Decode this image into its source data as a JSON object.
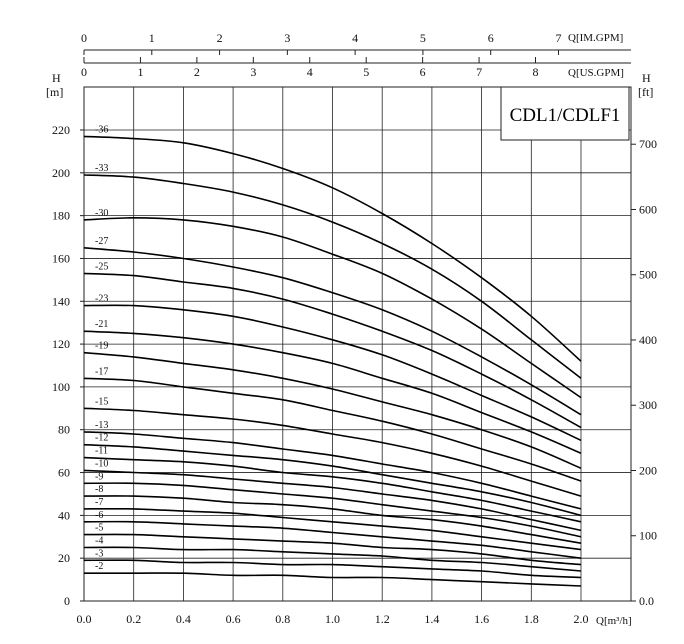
{
  "chart_data": {
    "type": "line",
    "model_label": "CDL1/CDLF1",
    "xlabel": "Q[m³/h]",
    "xlim": [
      0,
      2.0
    ],
    "x_ticks": [
      "0.0",
      "0.2",
      "0.4",
      "0.6",
      "0.8",
      "1.0",
      "1.2",
      "1.4",
      "1.6",
      "1.8",
      "2.0"
    ],
    "ylabel_left": "H",
    "ylabel_left_unit": "[m]",
    "ylim": [
      0,
      220
    ],
    "y_ticks_left": [
      "0",
      "20",
      "40",
      "60",
      "80",
      "100",
      "120",
      "140",
      "160",
      "180",
      "200",
      "220"
    ],
    "ylabel_right": "H",
    "ylabel_right_unit": "[ft]",
    "y_ticks_right": [
      {
        "label": "0.0",
        "value": 0
      },
      {
        "label": "100",
        "value": 100
      },
      {
        "label": "200",
        "value": 200
      },
      {
        "label": "300",
        "value": 300
      },
      {
        "label": "400",
        "value": 400
      },
      {
        "label": "500",
        "value": 500
      },
      {
        "label": "600",
        "value": 600
      },
      {
        "label": "700",
        "value": 700
      }
    ],
    "top_axis_im_gpm": {
      "label": "Q[IM.GPM]",
      "ticks": [
        "0",
        "1",
        "2",
        "3",
        "4",
        "5",
        "6",
        "7"
      ]
    },
    "top_axis_us_gpm": {
      "label": "Q[US.GPM]",
      "ticks": [
        "0",
        "1",
        "2",
        "3",
        "4",
        "5",
        "6",
        "7",
        "8"
      ]
    },
    "grid": true,
    "curve_x": [
      0.0,
      0.2,
      0.4,
      0.6,
      0.8,
      1.0,
      1.2,
      1.4,
      1.6,
      1.8,
      2.0
    ],
    "series": [
      {
        "name": "-36",
        "values": [
          217,
          216,
          214,
          209,
          202,
          193,
          181,
          167,
          151,
          133,
          112
        ]
      },
      {
        "name": "-33",
        "values": [
          199,
          198,
          195,
          191,
          185,
          177,
          167,
          155,
          140,
          122,
          104
        ]
      },
      {
        "name": "-30",
        "values": [
          178,
          179,
          178,
          175,
          170,
          162,
          153,
          141,
          127,
          111,
          95
        ]
      },
      {
        "name": "-27",
        "values": [
          165,
          163,
          160,
          156,
          151,
          144,
          136,
          126,
          114,
          101,
          87
        ]
      },
      {
        "name": "-25",
        "values": [
          153,
          152,
          149,
          146,
          141,
          134,
          126,
          117,
          106,
          94,
          81
        ]
      },
      {
        "name": "-23",
        "values": [
          138,
          138,
          136,
          133,
          128,
          122,
          115,
          106,
          96,
          86,
          75
        ]
      },
      {
        "name": "-21",
        "values": [
          126,
          125,
          123,
          120,
          116,
          111,
          104,
          97,
          88,
          79,
          69
        ]
      },
      {
        "name": "-19",
        "values": [
          116,
          114,
          111,
          108,
          104,
          99,
          93,
          87,
          80,
          72,
          62
        ]
      },
      {
        "name": "-17",
        "values": [
          104,
          103,
          100,
          97,
          94,
          89,
          84,
          78,
          71,
          64,
          56
        ]
      },
      {
        "name": "-15",
        "values": [
          90,
          89,
          87,
          85,
          82,
          78,
          74,
          69,
          63,
          56,
          49
        ]
      },
      {
        "name": "-13",
        "values": [
          79,
          78,
          76,
          74,
          71,
          68,
          64,
          60,
          55,
          49,
          43
        ]
      },
      {
        "name": "-12",
        "values": [
          73,
          72,
          70,
          68,
          66,
          63,
          59,
          55,
          51,
          46,
          40
        ]
      },
      {
        "name": "-11",
        "values": [
          67,
          66,
          65,
          63,
          60,
          58,
          55,
          51,
          47,
          42,
          37
        ]
      },
      {
        "name": "-10",
        "values": [
          61,
          60,
          59,
          57,
          55,
          53,
          50,
          47,
          43,
          38,
          33
        ]
      },
      {
        "name": "-9",
        "values": [
          55,
          55,
          54,
          52,
          50,
          48,
          45,
          42,
          39,
          35,
          30
        ]
      },
      {
        "name": "-8",
        "values": [
          49,
          49,
          48,
          46,
          45,
          43,
          40,
          38,
          35,
          31,
          27
        ]
      },
      {
        "name": "-7",
        "values": [
          43,
          43,
          42,
          41,
          39,
          37,
          35,
          33,
          30,
          27,
          24
        ]
      },
      {
        "name": "-6",
        "values": [
          37,
          37,
          36,
          35,
          34,
          32,
          30,
          28,
          26,
          23,
          20
        ]
      },
      {
        "name": "-5",
        "values": [
          31,
          31,
          30,
          29,
          28,
          27,
          25,
          24,
          22,
          19,
          17
        ]
      },
      {
        "name": "-4",
        "values": [
          25,
          25,
          24,
          24,
          23,
          22,
          21,
          19,
          18,
          16,
          14
        ]
      },
      {
        "name": "-3",
        "values": [
          19,
          19,
          18,
          18,
          17,
          17,
          16,
          15,
          14,
          12,
          11
        ]
      },
      {
        "name": "-2",
        "values": [
          13,
          13,
          13,
          12,
          12,
          11,
          11,
          10,
          9,
          8,
          7
        ]
      }
    ]
  }
}
